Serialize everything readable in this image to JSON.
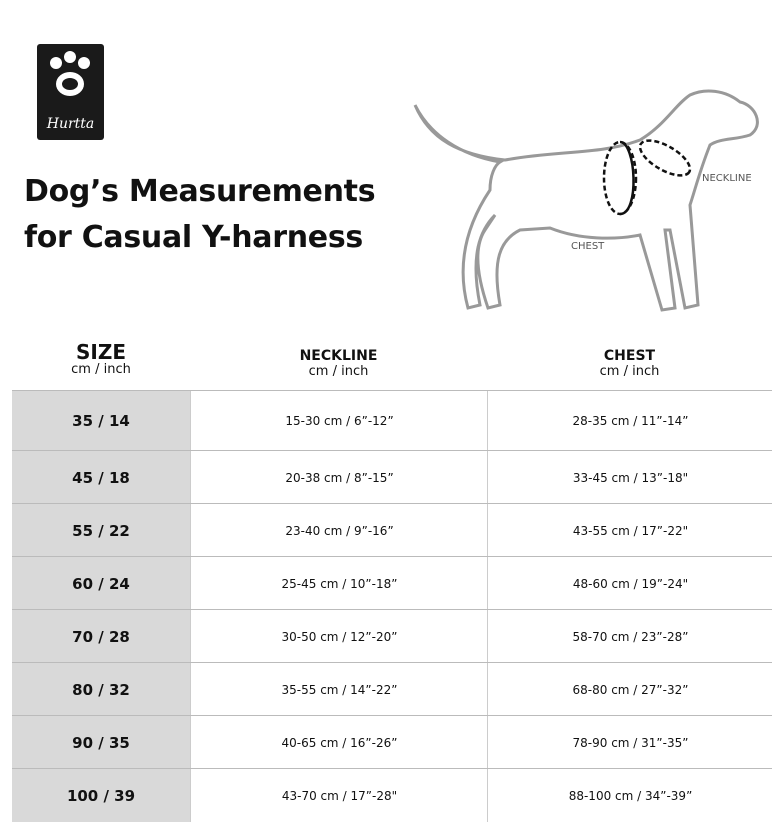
{
  "logo": {
    "text": "Hurtta"
  },
  "header": {
    "title_lines": [
      "Dog’s Measurements",
      "for Casual Y-harness"
    ]
  },
  "diagram": {
    "neckline_label": "NECKLINE",
    "chest_label": "CHEST"
  },
  "table": {
    "columns": [
      {
        "title": "SIZE",
        "unit": "cm / inch"
      },
      {
        "title": "NECKLINE",
        "unit": "cm / inch"
      },
      {
        "title": "CHEST",
        "unit": "cm / inch"
      }
    ],
    "rows": [
      [
        "35 / 14",
        "15-30 cm / 6”-12”",
        "28-35 cm / 11”-14”"
      ],
      [
        "45 / 18",
        "20-38 cm / 8”-15”",
        "33-45 cm / 13”-18\""
      ],
      [
        "55 / 22",
        "23-40 cm / 9”-16”",
        "43-55 cm / 17”-22\""
      ],
      [
        "60 / 24",
        "25-45 cm / 10”-18”",
        "48-60 cm / 19”-24\""
      ],
      [
        "70 / 28",
        "30-50 cm / 12”-20”",
        "58-70 cm / 23”-28”"
      ],
      [
        "80 / 32",
        "35-55 cm / 14”-22”",
        "68-80 cm / 27”-32”"
      ],
      [
        "90 / 35",
        "40-65 cm / 16”-26”",
        "78-90 cm / 31”-35”"
      ],
      [
        "100 / 39",
        "43-70 cm / 17”-28\"",
        "88-100 cm / 34”-39”"
      ]
    ]
  }
}
